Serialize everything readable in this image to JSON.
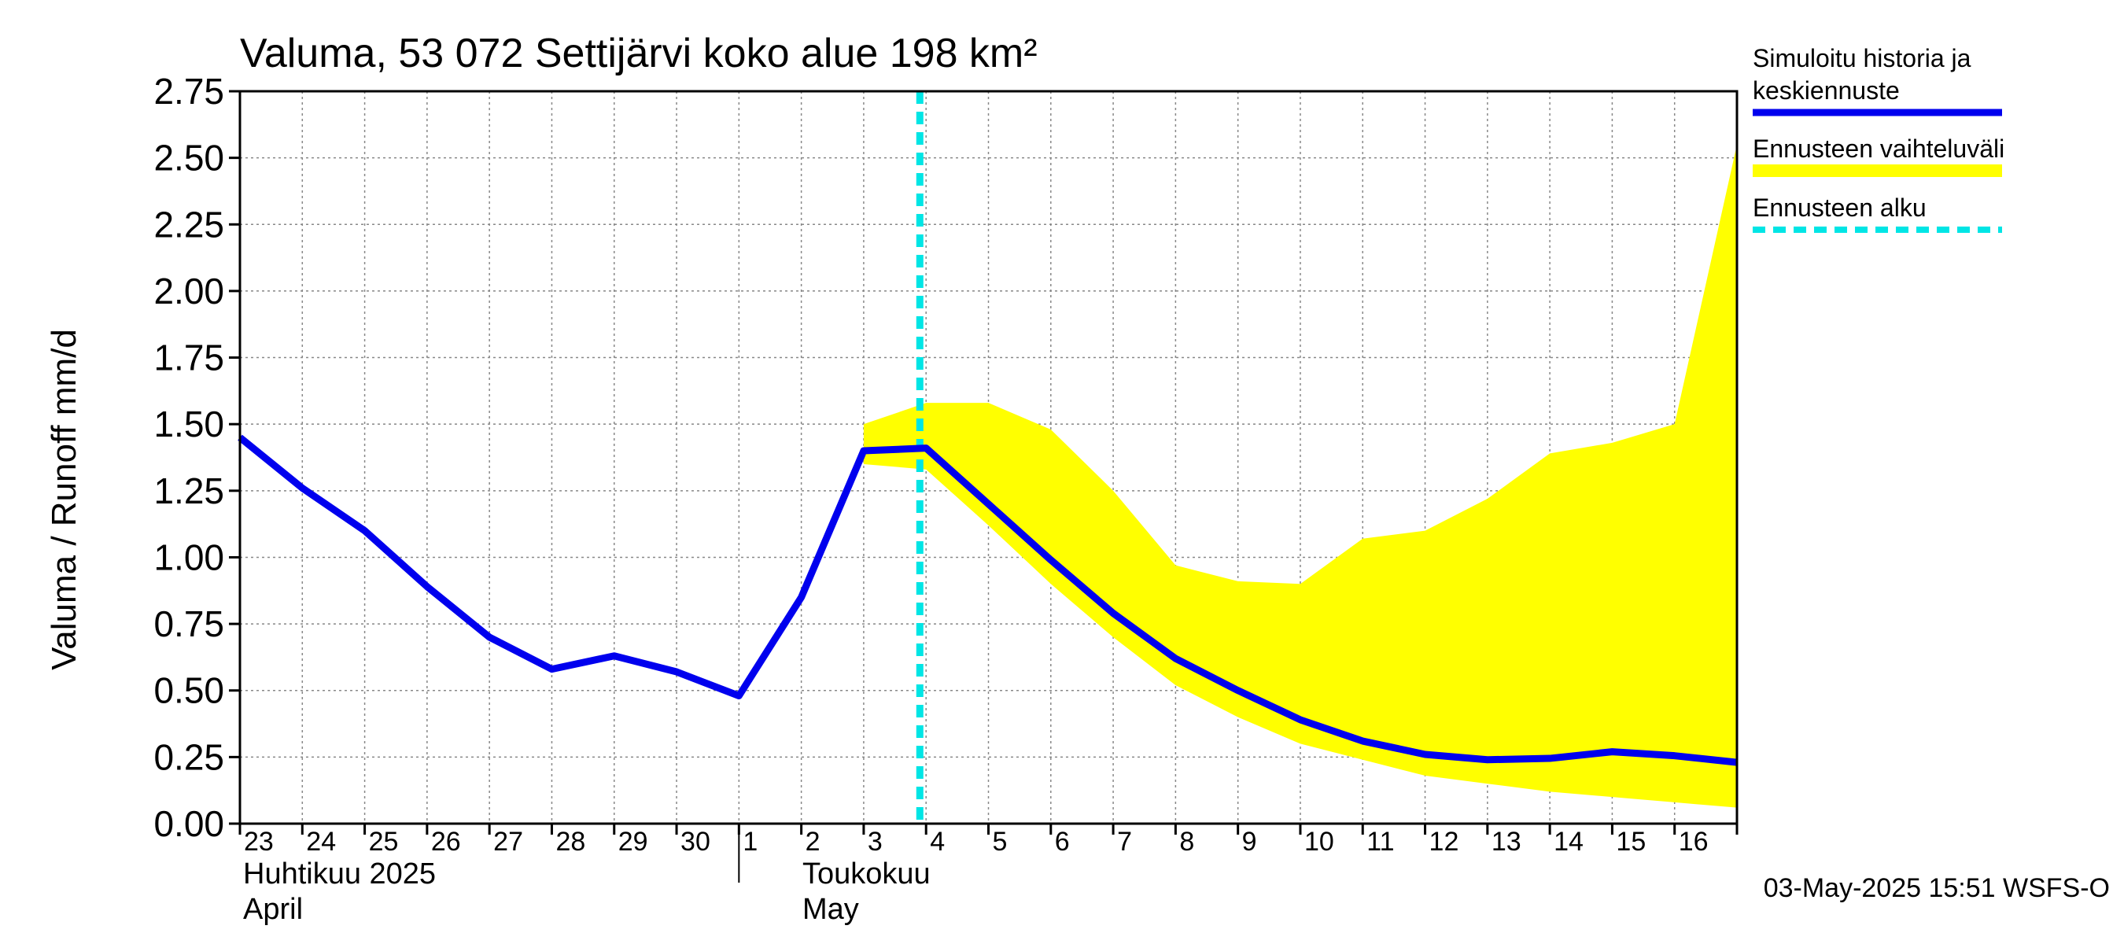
{
  "chart_data": {
    "type": "line",
    "title": "Valuma, 53 072 Settijärvi koko alue 198 km²",
    "ylabel": "Valuma / Runoff    mm/d",
    "ylim": [
      0,
      2.75
    ],
    "yticks": [
      "0.00",
      "0.25",
      "0.50",
      "0.75",
      "1.00",
      "1.25",
      "1.50",
      "1.75",
      "2.00",
      "2.25",
      "2.50",
      "2.75"
    ],
    "x_days": [
      "23",
      "24",
      "25",
      "26",
      "27",
      "28",
      "29",
      "30",
      "1",
      "2",
      "3",
      "4",
      "5",
      "6",
      "7",
      "8",
      "9",
      "10",
      "11",
      "12",
      "13",
      "14",
      "15",
      "16"
    ],
    "month_labels": [
      {
        "fi": "Huhtikuu  2025",
        "en": "April"
      },
      {
        "fi": "Toukokuu",
        "en": "May"
      }
    ],
    "grid": true,
    "legend_position": "right",
    "legend": [
      {
        "label": "Simuloitu historia ja keskiennuste",
        "color": "#0000ee",
        "style": "solid"
      },
      {
        "label": "Ennusteen vaihteluväli",
        "color": "#ffff00",
        "style": "band"
      },
      {
        "label": "Ennusteen alku",
        "color": "#00e5e5",
        "style": "dashed"
      }
    ],
    "forecast_start_day": 10.9,
    "series": [
      {
        "name": "Simuloitu historia ja keskiennuste",
        "x": [
          0,
          1,
          2,
          3,
          4,
          5,
          6,
          7,
          8,
          9,
          10,
          11,
          12,
          13,
          14,
          15,
          16,
          17,
          18,
          19,
          20,
          21,
          22,
          23,
          24
        ],
        "values": [
          1.45,
          1.26,
          1.1,
          0.89,
          0.7,
          0.58,
          0.63,
          0.57,
          0.48,
          0.85,
          1.4,
          1.41,
          1.2,
          0.99,
          0.79,
          0.62,
          0.5,
          0.39,
          0.31,
          0.26,
          0.24,
          0.245,
          0.27,
          0.255,
          0.23
        ]
      },
      {
        "name": "Ennusteen vaihteluväli",
        "x": [
          10,
          11,
          12,
          13,
          14,
          15,
          16,
          17,
          18,
          19,
          20,
          21,
          22,
          23,
          24
        ],
        "upper": [
          1.5,
          1.58,
          1.58,
          1.48,
          1.25,
          0.97,
          0.91,
          0.9,
          1.07,
          1.1,
          1.22,
          1.39,
          1.43,
          1.5,
          2.55
        ],
        "lower": [
          1.35,
          1.33,
          1.12,
          0.9,
          0.7,
          0.52,
          0.4,
          0.3,
          0.24,
          0.18,
          0.15,
          0.12,
          0.1,
          0.08,
          0.06
        ]
      }
    ]
  },
  "timestamp": "03-May-2025 15:51 WSFS-O"
}
